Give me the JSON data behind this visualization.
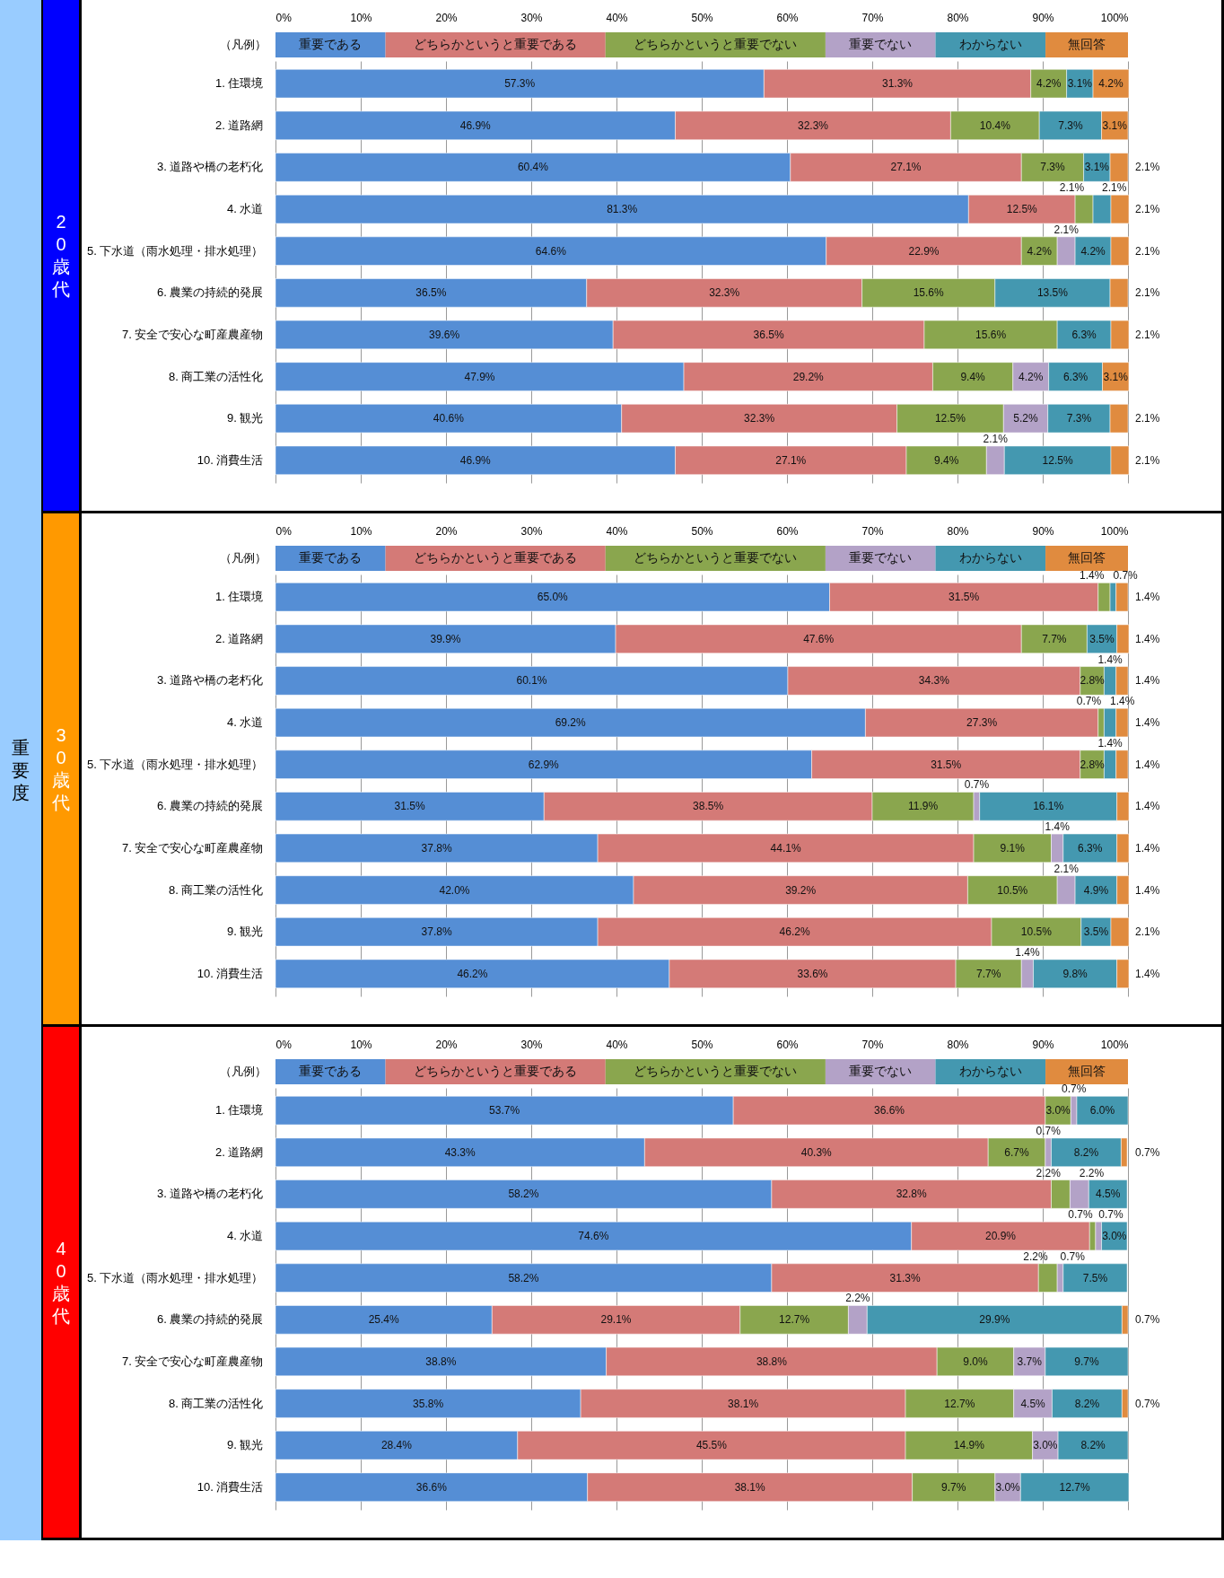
{
  "chart_data": [
    {
      "type": "bar",
      "orientation": "horizontal",
      "stacked": true,
      "title": "20歳代",
      "annotations": [
        "重要度"
      ],
      "legend": "top",
      "legend_title": "（凡例）",
      "grid": "x",
      "xlim": [
        0,
        100
      ],
      "xticks": [
        {
          "value": 0,
          "label": "0%"
        },
        {
          "value": 10,
          "label": "10%"
        },
        {
          "value": 20,
          "label": "20%"
        },
        {
          "value": 30,
          "label": "30%"
        },
        {
          "value": 40,
          "label": "40%"
        },
        {
          "value": 50,
          "label": "50%"
        },
        {
          "value": 60,
          "label": "60%"
        },
        {
          "value": 70,
          "label": "70%"
        },
        {
          "value": 80,
          "label": "80%"
        },
        {
          "value": 90,
          "label": "90%"
        },
        {
          "value": 100,
          "label": "100%"
        }
      ],
      "categories": [
        "1. 住環境",
        "2. 道路網",
        "3. 道路や橋の老朽化",
        "4. 水道",
        "5. 下水道（雨水処理・排水処理）",
        "6. 農業の持続的発展",
        "7. 安全で安心な町産農産物",
        "8. 商工業の活性化",
        "9. 観光",
        "10. 消費生活"
      ],
      "series": [
        {
          "name": "重要である",
          "color": "#558ed5",
          "values": [
            57.3,
            46.9,
            60.4,
            81.3,
            64.6,
            36.5,
            39.6,
            47.9,
            40.6,
            46.9
          ],
          "value_labels": [
            "57.3%",
            "46.9%",
            "60.4%",
            "81.3%",
            "64.6%",
            "36.5%",
            "39.6%",
            "47.9%",
            "40.6%",
            "46.9%"
          ]
        },
        {
          "name": "どちらかというと重要である",
          "color": "#d47a77",
          "values": [
            31.3,
            32.3,
            27.1,
            12.5,
            22.9,
            32.3,
            36.5,
            29.2,
            32.3,
            27.1
          ],
          "value_labels": [
            "31.3%",
            "32.3%",
            "27.1%",
            "12.5%",
            "22.9%",
            "32.3%",
            "36.5%",
            "29.2%",
            "32.3%",
            "27.1%"
          ]
        },
        {
          "name": "どちらかというと重要でない",
          "color": "#8aa64e",
          "values": [
            4.2,
            10.4,
            7.3,
            2.1,
            4.2,
            15.6,
            15.6,
            9.4,
            12.5,
            9.4
          ],
          "value_labels": [
            "4.2%",
            "10.4%",
            "7.3%",
            "2.1%",
            "4.2%",
            "15.6%",
            "15.6%",
            "9.4%",
            "12.5%",
            "9.4%"
          ]
        },
        {
          "name": "重要でない",
          "color": "#b3a2c7",
          "values": [
            null,
            null,
            null,
            null,
            2.1,
            null,
            null,
            4.2,
            5.2,
            2.1
          ],
          "value_labels": [
            null,
            null,
            null,
            null,
            "2.1%",
            null,
            null,
            "4.2%",
            "5.2%",
            "2.1%"
          ]
        },
        {
          "name": "わからない",
          "color": "#4498b0",
          "values": [
            3.1,
            7.3,
            3.1,
            2.1,
            4.2,
            13.5,
            6.3,
            6.3,
            7.3,
            12.5
          ],
          "value_labels": [
            "3.1%",
            "7.3%",
            "3.1%",
            "2.1%",
            "4.2%",
            "13.5%",
            "6.3%",
            "6.3%",
            "7.3%",
            "12.5%"
          ]
        },
        {
          "name": "無回答",
          "color": "#e08b3f",
          "values": [
            4.2,
            3.1,
            2.1,
            2.1,
            2.1,
            2.1,
            2.1,
            3.1,
            2.1,
            2.1
          ],
          "value_labels": [
            "4.2%",
            "3.1%",
            "2.1%",
            "2.1%",
            "2.1%",
            "2.1%",
            "2.1%",
            "3.1%",
            "2.1%",
            "2.1%"
          ]
        }
      ]
    },
    {
      "type": "bar",
      "orientation": "horizontal",
      "stacked": true,
      "title": "30歳代",
      "legend": "top",
      "legend_title": "（凡例）",
      "grid": "x",
      "xlim": [
        0,
        100
      ],
      "xticks": [
        {
          "value": 0,
          "label": "0%"
        },
        {
          "value": 10,
          "label": "10%"
        },
        {
          "value": 20,
          "label": "20%"
        },
        {
          "value": 30,
          "label": "30%"
        },
        {
          "value": 40,
          "label": "40%"
        },
        {
          "value": 50,
          "label": "50%"
        },
        {
          "value": 60,
          "label": "60%"
        },
        {
          "value": 70,
          "label": "70%"
        },
        {
          "value": 80,
          "label": "80%"
        },
        {
          "value": 90,
          "label": "90%"
        },
        {
          "value": 100,
          "label": "100%"
        }
      ],
      "categories": [
        "1. 住環境",
        "2. 道路網",
        "3. 道路や橋の老朽化",
        "4. 水道",
        "5. 下水道（雨水処理・排水処理）",
        "6. 農業の持続的発展",
        "7. 安全で安心な町産農産物",
        "8. 商工業の活性化",
        "9. 観光",
        "10. 消費生活"
      ],
      "series": [
        {
          "name": "重要である",
          "color": "#558ed5",
          "values": [
            65.0,
            39.9,
            60.1,
            69.2,
            62.9,
            31.5,
            37.8,
            42.0,
            37.8,
            46.2
          ],
          "value_labels": [
            "65.0%",
            "39.9%",
            "60.1%",
            "69.2%",
            "62.9%",
            "31.5%",
            "37.8%",
            "42.0%",
            "37.8%",
            "46.2%"
          ]
        },
        {
          "name": "どちらかというと重要である",
          "color": "#d47a77",
          "values": [
            31.5,
            47.6,
            34.3,
            27.3,
            31.5,
            38.5,
            44.1,
            39.2,
            46.2,
            33.6
          ],
          "value_labels": [
            "31.5%",
            "47.6%",
            "34.3%",
            "27.3%",
            "31.5%",
            "38.5%",
            "44.1%",
            "39.2%",
            "46.2%",
            "33.6%"
          ]
        },
        {
          "name": "どちらかというと重要でない",
          "color": "#8aa64e",
          "values": [
            1.4,
            7.7,
            2.8,
            0.7,
            2.8,
            11.9,
            9.1,
            10.5,
            10.5,
            7.7
          ],
          "value_labels": [
            "1.4%",
            "7.7%",
            "2.8%",
            "0.7%",
            "2.8%",
            "11.9%",
            "9.1%",
            "10.5%",
            "10.5%",
            "7.7%"
          ]
        },
        {
          "name": "重要でない",
          "color": "#b3a2c7",
          "values": [
            null,
            null,
            null,
            null,
            null,
            0.7,
            1.4,
            2.1,
            null,
            1.4
          ],
          "value_labels": [
            null,
            null,
            null,
            null,
            null,
            "0.7%",
            "1.4%",
            "2.1%",
            null,
            "1.4%"
          ]
        },
        {
          "name": "わからない",
          "color": "#4498b0",
          "values": [
            0.7,
            3.5,
            1.4,
            1.4,
            1.4,
            16.1,
            6.3,
            4.9,
            3.5,
            9.8
          ],
          "value_labels": [
            "0.7%",
            "3.5%",
            "1.4%",
            "1.4%",
            "1.4%",
            "16.1%",
            "6.3%",
            "4.9%",
            "3.5%",
            "9.8%"
          ]
        },
        {
          "name": "無回答",
          "color": "#e08b3f",
          "values": [
            1.4,
            1.4,
            1.4,
            1.4,
            1.4,
            1.4,
            1.4,
            1.4,
            2.1,
            1.4
          ],
          "value_labels": [
            "1.4%",
            "1.4%",
            "1.4%",
            "1.4%",
            "1.4%",
            "1.4%",
            "1.4%",
            "1.4%",
            "2.1%",
            "1.4%"
          ]
        }
      ]
    },
    {
      "type": "bar",
      "orientation": "horizontal",
      "stacked": true,
      "title": "40歳代",
      "legend": "top",
      "legend_title": "（凡例）",
      "grid": "x",
      "xlim": [
        0,
        100
      ],
      "xticks": [
        {
          "value": 0,
          "label": "0%"
        },
        {
          "value": 10,
          "label": "10%"
        },
        {
          "value": 20,
          "label": "20%"
        },
        {
          "value": 30,
          "label": "30%"
        },
        {
          "value": 40,
          "label": "40%"
        },
        {
          "value": 50,
          "label": "50%"
        },
        {
          "value": 60,
          "label": "60%"
        },
        {
          "value": 70,
          "label": "70%"
        },
        {
          "value": 80,
          "label": "80%"
        },
        {
          "value": 90,
          "label": "90%"
        },
        {
          "value": 100,
          "label": "100%"
        }
      ],
      "categories": [
        "1. 住環境",
        "2. 道路網",
        "3. 道路や橋の老朽化",
        "4. 水道",
        "5. 下水道（雨水処理・排水処理）",
        "6. 農業の持続的発展",
        "7. 安全で安心な町産農産物",
        "8. 商工業の活性化",
        "9. 観光",
        "10. 消費生活"
      ],
      "series": [
        {
          "name": "重要である",
          "color": "#558ed5",
          "values": [
            53.7,
            43.3,
            58.2,
            74.6,
            58.2,
            25.4,
            38.8,
            35.8,
            28.4,
            36.6
          ],
          "value_labels": [
            "53.7%",
            "43.3%",
            "58.2%",
            "74.6%",
            "58.2%",
            "25.4%",
            "38.8%",
            "35.8%",
            "28.4%",
            "36.6%"
          ]
        },
        {
          "name": "どちらかというと重要である",
          "color": "#d47a77",
          "values": [
            36.6,
            40.3,
            32.8,
            20.9,
            31.3,
            29.1,
            38.8,
            38.1,
            45.5,
            38.1
          ],
          "value_labels": [
            "36.6%",
            "40.3%",
            "32.8%",
            "20.9%",
            "31.3%",
            "29.1%",
            "38.8%",
            "38.1%",
            "45.5%",
            "38.1%"
          ]
        },
        {
          "name": "どちらかというと重要でない",
          "color": "#8aa64e",
          "values": [
            3.0,
            6.7,
            2.2,
            0.7,
            2.2,
            12.7,
            9.0,
            12.7,
            14.9,
            9.7
          ],
          "value_labels": [
            "3.0%",
            "6.7%",
            "2.2%",
            "0.7%",
            "2.2%",
            "12.7%",
            "9.0%",
            "12.7%",
            "14.9%",
            "9.7%"
          ]
        },
        {
          "name": "重要でない",
          "color": "#b3a2c7",
          "values": [
            0.7,
            0.7,
            2.2,
            0.7,
            0.7,
            2.2,
            3.7,
            4.5,
            3.0,
            3.0
          ],
          "value_labels": [
            "0.7%",
            "0.7%",
            "2.2%",
            "0.7%",
            "0.7%",
            "2.2%",
            "3.7%",
            "4.5%",
            "3.0%",
            "3.0%"
          ]
        },
        {
          "name": "わからない",
          "color": "#4498b0",
          "values": [
            6.0,
            8.2,
            4.5,
            3.0,
            7.5,
            29.9,
            9.7,
            8.2,
            8.2,
            12.7
          ],
          "value_labels": [
            "6.0%",
            "8.2%",
            "4.5%",
            "3.0%",
            "7.5%",
            "29.9%",
            "9.7%",
            "8.2%",
            "8.2%",
            "12.7%"
          ]
        },
        {
          "name": "無回答",
          "color": "#e08b3f",
          "values": [
            null,
            0.7,
            null,
            null,
            null,
            0.7,
            null,
            0.7,
            null,
            null
          ],
          "value_labels": [
            null,
            "0.7%",
            null,
            null,
            null,
            "0.7%",
            null,
            "0.7%",
            null,
            null
          ]
        }
      ]
    }
  ]
}
